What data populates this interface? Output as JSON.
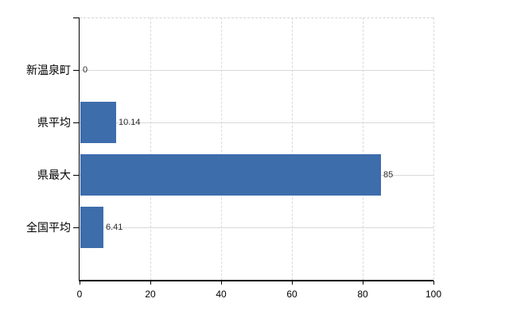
{
  "chart_data": {
    "type": "bar",
    "orientation": "horizontal",
    "title": "",
    "xlabel": "",
    "ylabel": "",
    "categories": [
      "新温泉町",
      "県平均",
      "県最大",
      "全国平均"
    ],
    "values": [
      0,
      10.14,
      85,
      6.41
    ],
    "value_labels": [
      "0",
      "10.14",
      "85",
      "6.41"
    ],
    "xlim": [
      0,
      100
    ],
    "x_ticks": [
      "0",
      "20",
      "40",
      "60",
      "80",
      "100"
    ],
    "x_tick_values": [
      0,
      20,
      40,
      60,
      80,
      100
    ],
    "grid": true,
    "legend_position": "none",
    "bar_color": "#3e6dac"
  },
  "colors": {
    "bar": "#3e6dac",
    "axis": "#000000",
    "gridline": "#d9d9d9",
    "background": "#ffffff",
    "text": "#000000",
    "value_text": "#2b2b2b"
  }
}
